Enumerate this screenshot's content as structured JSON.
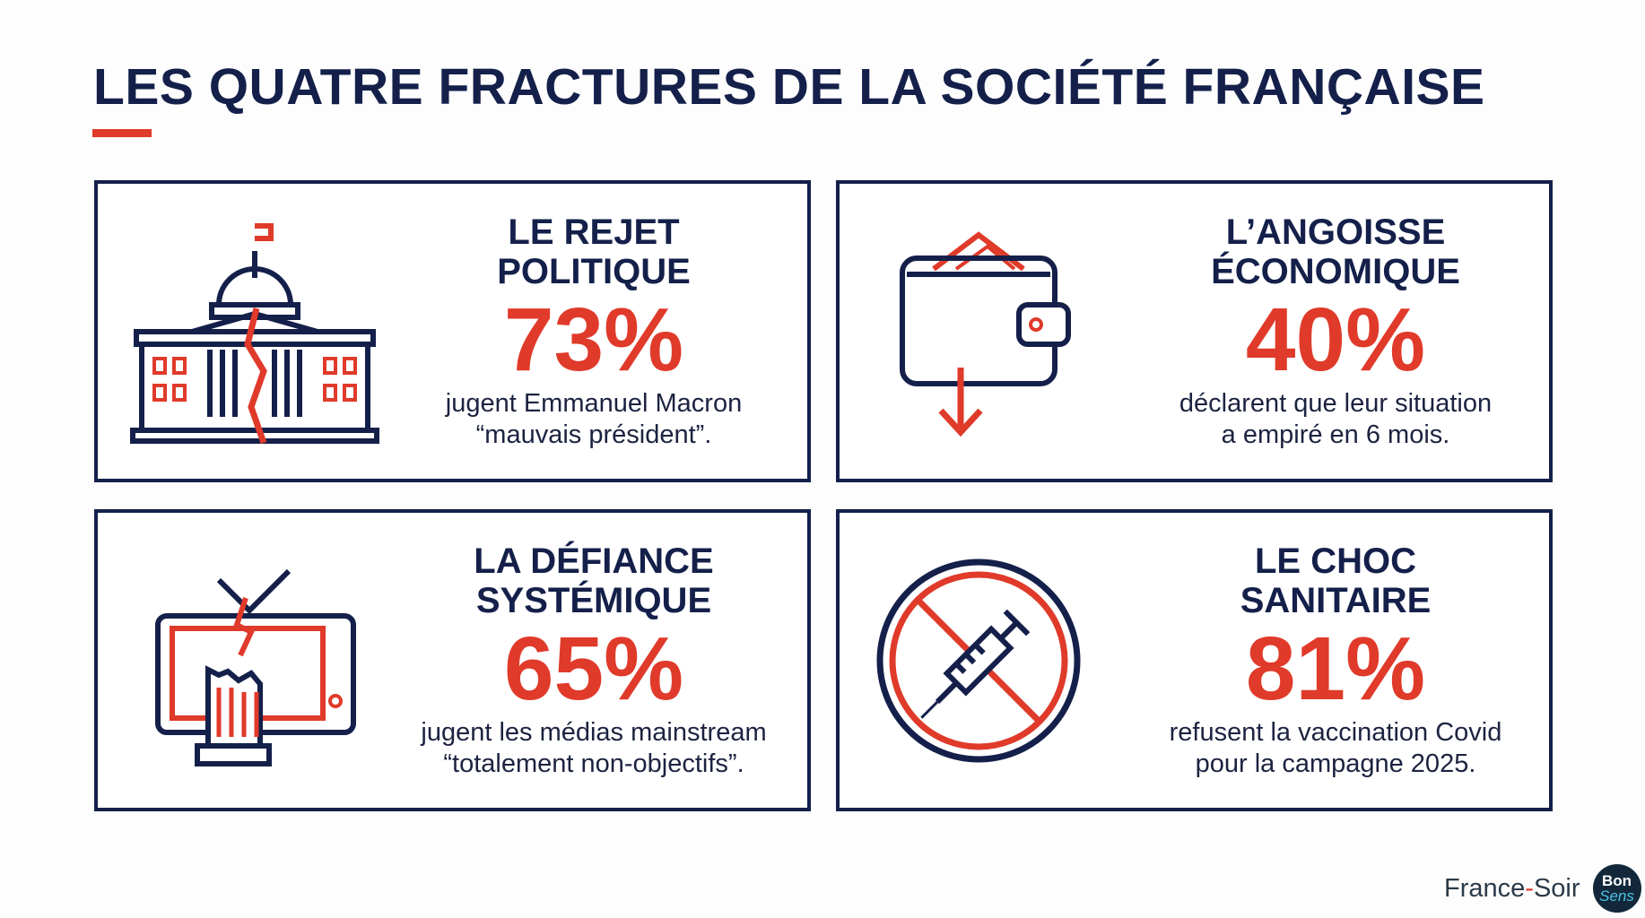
{
  "title": "LES QUATRE FRACTURES DE LA SOCIÉTÉ FRANÇAISE",
  "colors": {
    "navy": "#14204a",
    "red": "#e03a2a"
  },
  "cards": [
    {
      "icon": "cracked-government-building-icon",
      "heading1": "LE REJET",
      "heading2": "POLITIQUE",
      "value": "73%",
      "desc1": "jugent Emmanuel Macron",
      "desc2": "“mauvais président”."
    },
    {
      "icon": "wallet-down-arrow-icon",
      "heading1": "L’ANGOISSE",
      "heading2": "ÉCONOMIQUE",
      "value": "40%",
      "desc1": "déclarent que leur situation",
      "desc2": "a empiré en 6 mois."
    },
    {
      "icon": "broken-tv-icon",
      "heading1": "LA DÉFIANCE",
      "heading2": "SYSTÉMIQUE",
      "value": "65%",
      "desc1": "jugent les médias mainstream",
      "desc2": "“totalement non-objectifs”."
    },
    {
      "icon": "no-syringe-icon",
      "heading1": "LE CHOC",
      "heading2": "SANITAIRE",
      "value": "81%",
      "desc1": "refusent la vaccination Covid",
      "desc2": "pour la campagne 2025."
    }
  ],
  "footer": {
    "brand_a": "France",
    "brand_dash": "-",
    "brand_b": "Soir",
    "badge_top": "Bon",
    "badge_bottom": "Sens"
  }
}
